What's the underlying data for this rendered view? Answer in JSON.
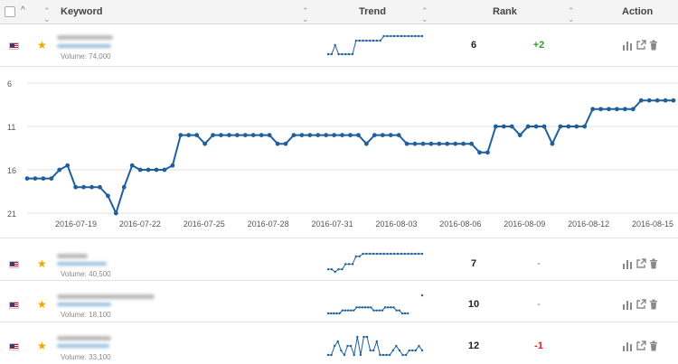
{
  "header": {
    "keyword": "Keyword",
    "trend": "Trend",
    "rank": "Rank",
    "action": "Action"
  },
  "icons": {
    "select_all": "checkbox-icon",
    "select_menu": "caret-up-icon",
    "sort": "sort-arrows-icon",
    "flag": "us-flag-icon",
    "favorite": "star-icon",
    "chart": "bar-chart-icon",
    "open": "external-link-icon",
    "delete": "trash-icon"
  },
  "colors": {
    "line": "#1f5f9c",
    "positive": "#2ea12e",
    "negative": "#d62020",
    "star": "#f0a500"
  },
  "rows": [
    {
      "volume": "Volume: 74,000",
      "rank": "6",
      "change": "+2",
      "change_type": "pos",
      "trend": [
        15,
        15,
        13,
        15,
        15,
        15,
        15,
        15,
        12,
        12,
        12,
        12,
        12,
        12,
        12,
        12,
        11,
        11,
        11,
        11,
        11,
        11,
        11,
        11,
        11,
        11,
        11,
        11
      ]
    },
    {
      "volume": "Volume: 40,500",
      "rank": "7",
      "change": "-",
      "change_type": "none",
      "trend": [
        10,
        10,
        11,
        10,
        10,
        8,
        8,
        8,
        5,
        5,
        4,
        4,
        4,
        4,
        4,
        4,
        4,
        4,
        4,
        4,
        4,
        4,
        4,
        4,
        4,
        4,
        4,
        4
      ]
    },
    {
      "volume": "Volume: 18,100",
      "rank": "10",
      "change": "-",
      "change_type": "none",
      "trend": [
        12,
        12,
        12,
        12,
        12,
        11,
        11,
        11,
        11,
        11,
        10,
        10,
        10,
        10,
        10,
        10,
        11,
        11,
        11,
        11,
        10,
        10,
        10,
        10,
        11,
        11,
        12,
        12,
        12,
        null,
        null,
        null,
        null,
        6
      ]
    },
    {
      "volume": "Volume: 33,100",
      "rank": "12",
      "change": "-1",
      "change_type": "neg",
      "trend": [
        13,
        13,
        11,
        10,
        12,
        13,
        11,
        11,
        13,
        9,
        13,
        9,
        9,
        12,
        12,
        10,
        13,
        13,
        13,
        13,
        12,
        11,
        12,
        13,
        13,
        12,
        12,
        12,
        11,
        12
      ]
    }
  ],
  "chart_data": {
    "type": "line",
    "x_tick_labels": [
      "2016-07-19",
      "2016-07-22",
      "2016-07-25",
      "2016-07-28",
      "2016-07-31",
      "2016-08-03",
      "2016-08-06",
      "2016-08-09",
      "2016-08-12",
      "2016-08-15"
    ],
    "y_tick_labels": [
      "6",
      "11",
      "16",
      "21"
    ],
    "ylim": [
      6,
      21
    ],
    "y_reversed": true,
    "grid": true,
    "series": [
      {
        "values": [
          17,
          17,
          17,
          17,
          16,
          15.5,
          18,
          18,
          18,
          18,
          19,
          21,
          18,
          15.5,
          16,
          16,
          16,
          16,
          15.5,
          12,
          12,
          12,
          13,
          12,
          12,
          12,
          12,
          12,
          12,
          12,
          12,
          13,
          13,
          12,
          12,
          12,
          12,
          12,
          12,
          12,
          12,
          12,
          13,
          12,
          12,
          12,
          12,
          13,
          13,
          13,
          13,
          13,
          13,
          13,
          13,
          13,
          14,
          14,
          11,
          11,
          11,
          12,
          11,
          11,
          11,
          13,
          11,
          11,
          11,
          11,
          9,
          9,
          9,
          9,
          9,
          9,
          8,
          8,
          8,
          8,
          8
        ]
      }
    ]
  }
}
